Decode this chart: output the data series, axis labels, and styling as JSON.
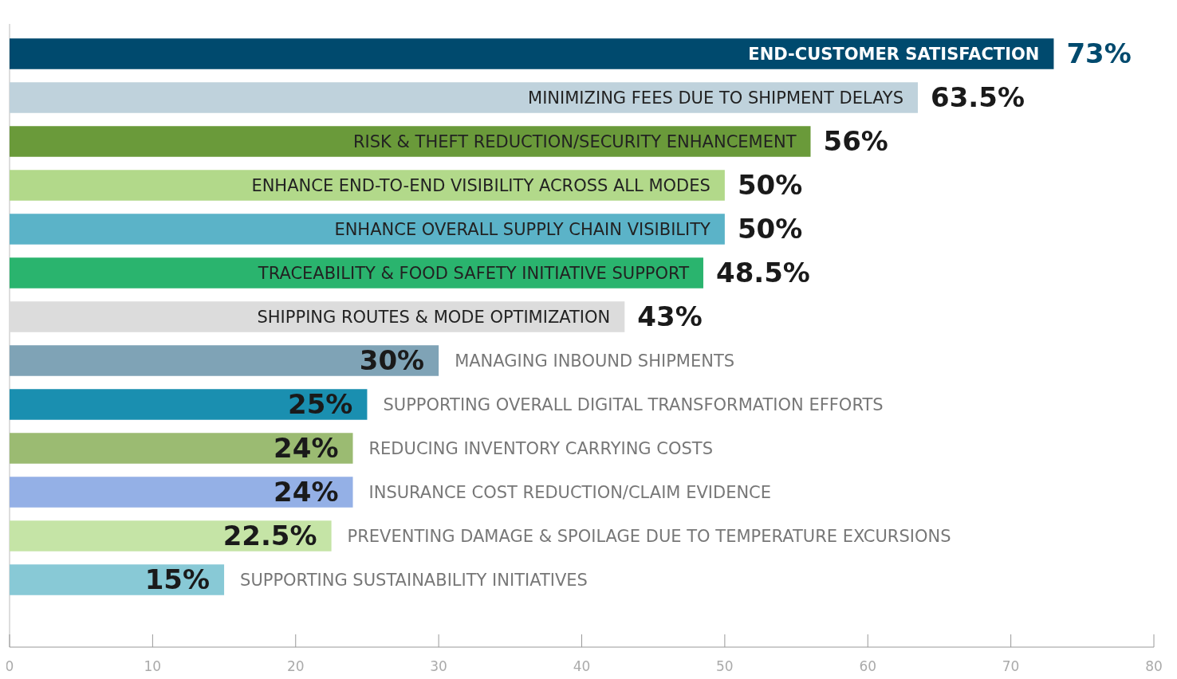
{
  "chart_data": {
    "type": "bar",
    "orientation": "horizontal",
    "categories": [
      "END-CUSTOMER SATISFACTION",
      "MINIMIZING FEES DUE TO SHIPMENT DELAYS",
      "RISK & THEFT REDUCTION/SECURITY ENHANCEMENT",
      "ENHANCE END-TO-END VISIBILITY ACROSS ALL MODES",
      "ENHANCE OVERALL SUPPLY CHAIN VISIBILITY",
      "TRACEABILITY & FOOD SAFETY INITIATIVE SUPPORT",
      "SHIPPING ROUTES & MODE OPTIMIZATION",
      "MANAGING INBOUND SHIPMENTS",
      "SUPPORTING OVERALL DIGITAL TRANSFORMATION EFFORTS",
      "REDUCING INVENTORY CARRYING COSTS",
      "INSURANCE COST REDUCTION/CLAIM EVIDENCE",
      "PREVENTING DAMAGE & SPOILAGE DUE TO TEMPERATURE EXCURSIONS",
      "SUPPORTING SUSTAINABILITY INITIATIVES"
    ],
    "values": [
      73,
      63.5,
      56,
      50,
      50,
      48.5,
      43,
      30,
      25,
      24,
      24,
      22.5,
      15
    ],
    "value_labels": [
      "73%",
      "63.5%",
      "56%",
      "50%",
      "50%",
      "48.5%",
      "43%",
      "30%",
      "25%",
      "24%",
      "24%",
      "22.5%",
      "15%"
    ],
    "colors": [
      "#004a6e",
      "#bfd2dc",
      "#6a9a3a",
      "#b2d98a",
      "#5bb3c8",
      "#2ab46e",
      "#dcdcdc",
      "#7fa3b6",
      "#1a8fb0",
      "#9bbb72",
      "#94b0e6",
      "#c5e4a6",
      "#88c9d6"
    ],
    "xlim": [
      0,
      80
    ],
    "xticks": [
      0,
      10,
      20,
      30,
      40,
      50,
      60,
      70,
      80
    ],
    "grid": false
  }
}
